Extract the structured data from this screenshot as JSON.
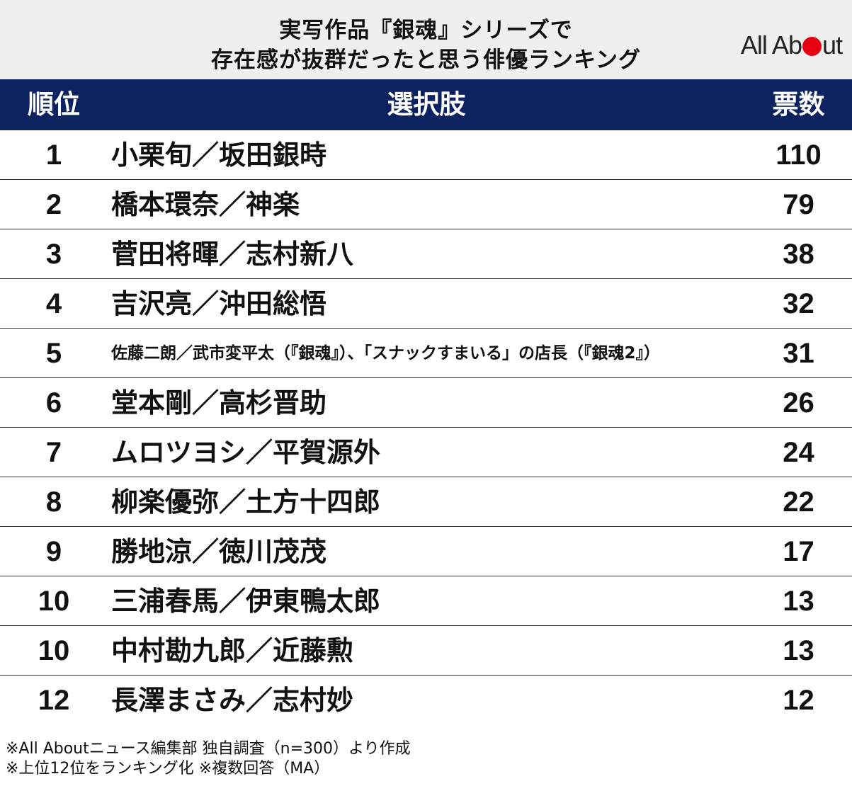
{
  "header": {
    "title_line1": "実写作品『銀魂』シリーズで",
    "title_line2": "存在感が抜群だったと思う俳優ランキング",
    "logo_before": "All Ab",
    "logo_after": "ut",
    "logo_accent": "#e60012"
  },
  "colors": {
    "header_bar": "#0d2360",
    "header_band": "#efefef",
    "row_divider": "#333333"
  },
  "chart_data": {
    "type": "table",
    "columns": [
      "順位",
      "選択肢",
      "票数"
    ],
    "rows": [
      {
        "rank": "1",
        "choice": "小栗旬／坂田銀時",
        "votes": 110
      },
      {
        "rank": "2",
        "choice": "橋本環奈／神楽",
        "votes": 79
      },
      {
        "rank": "3",
        "choice": "菅田将暉／志村新八",
        "votes": 38
      },
      {
        "rank": "4",
        "choice": "吉沢亮／沖田総悟",
        "votes": 32
      },
      {
        "rank": "5",
        "choice": "佐藤二朗／武市変平太（『銀魂』）、「スナックすまいる」の店長（『銀魂2』）",
        "votes": 31
      },
      {
        "rank": "6",
        "choice": "堂本剛／高杉晋助",
        "votes": 26
      },
      {
        "rank": "7",
        "choice": "ムロツヨシ／平賀源外",
        "votes": 24
      },
      {
        "rank": "8",
        "choice": "柳楽優弥／土方十四郎",
        "votes": 22
      },
      {
        "rank": "9",
        "choice": "勝地涼／徳川茂茂",
        "votes": 17
      },
      {
        "rank": "10",
        "choice": "三浦春馬／伊東鴨太郎",
        "votes": 13
      },
      {
        "rank": "10",
        "choice": "中村勘九郎／近藤勲",
        "votes": 13
      },
      {
        "rank": "12",
        "choice": "長澤まさみ／志村妙",
        "votes": 12
      }
    ]
  },
  "footnotes": [
    "※All Aboutニュース編集部 独自調査（n=300）より作成",
    "※上位12位をランキング化 ※複数回答（MA）"
  ]
}
